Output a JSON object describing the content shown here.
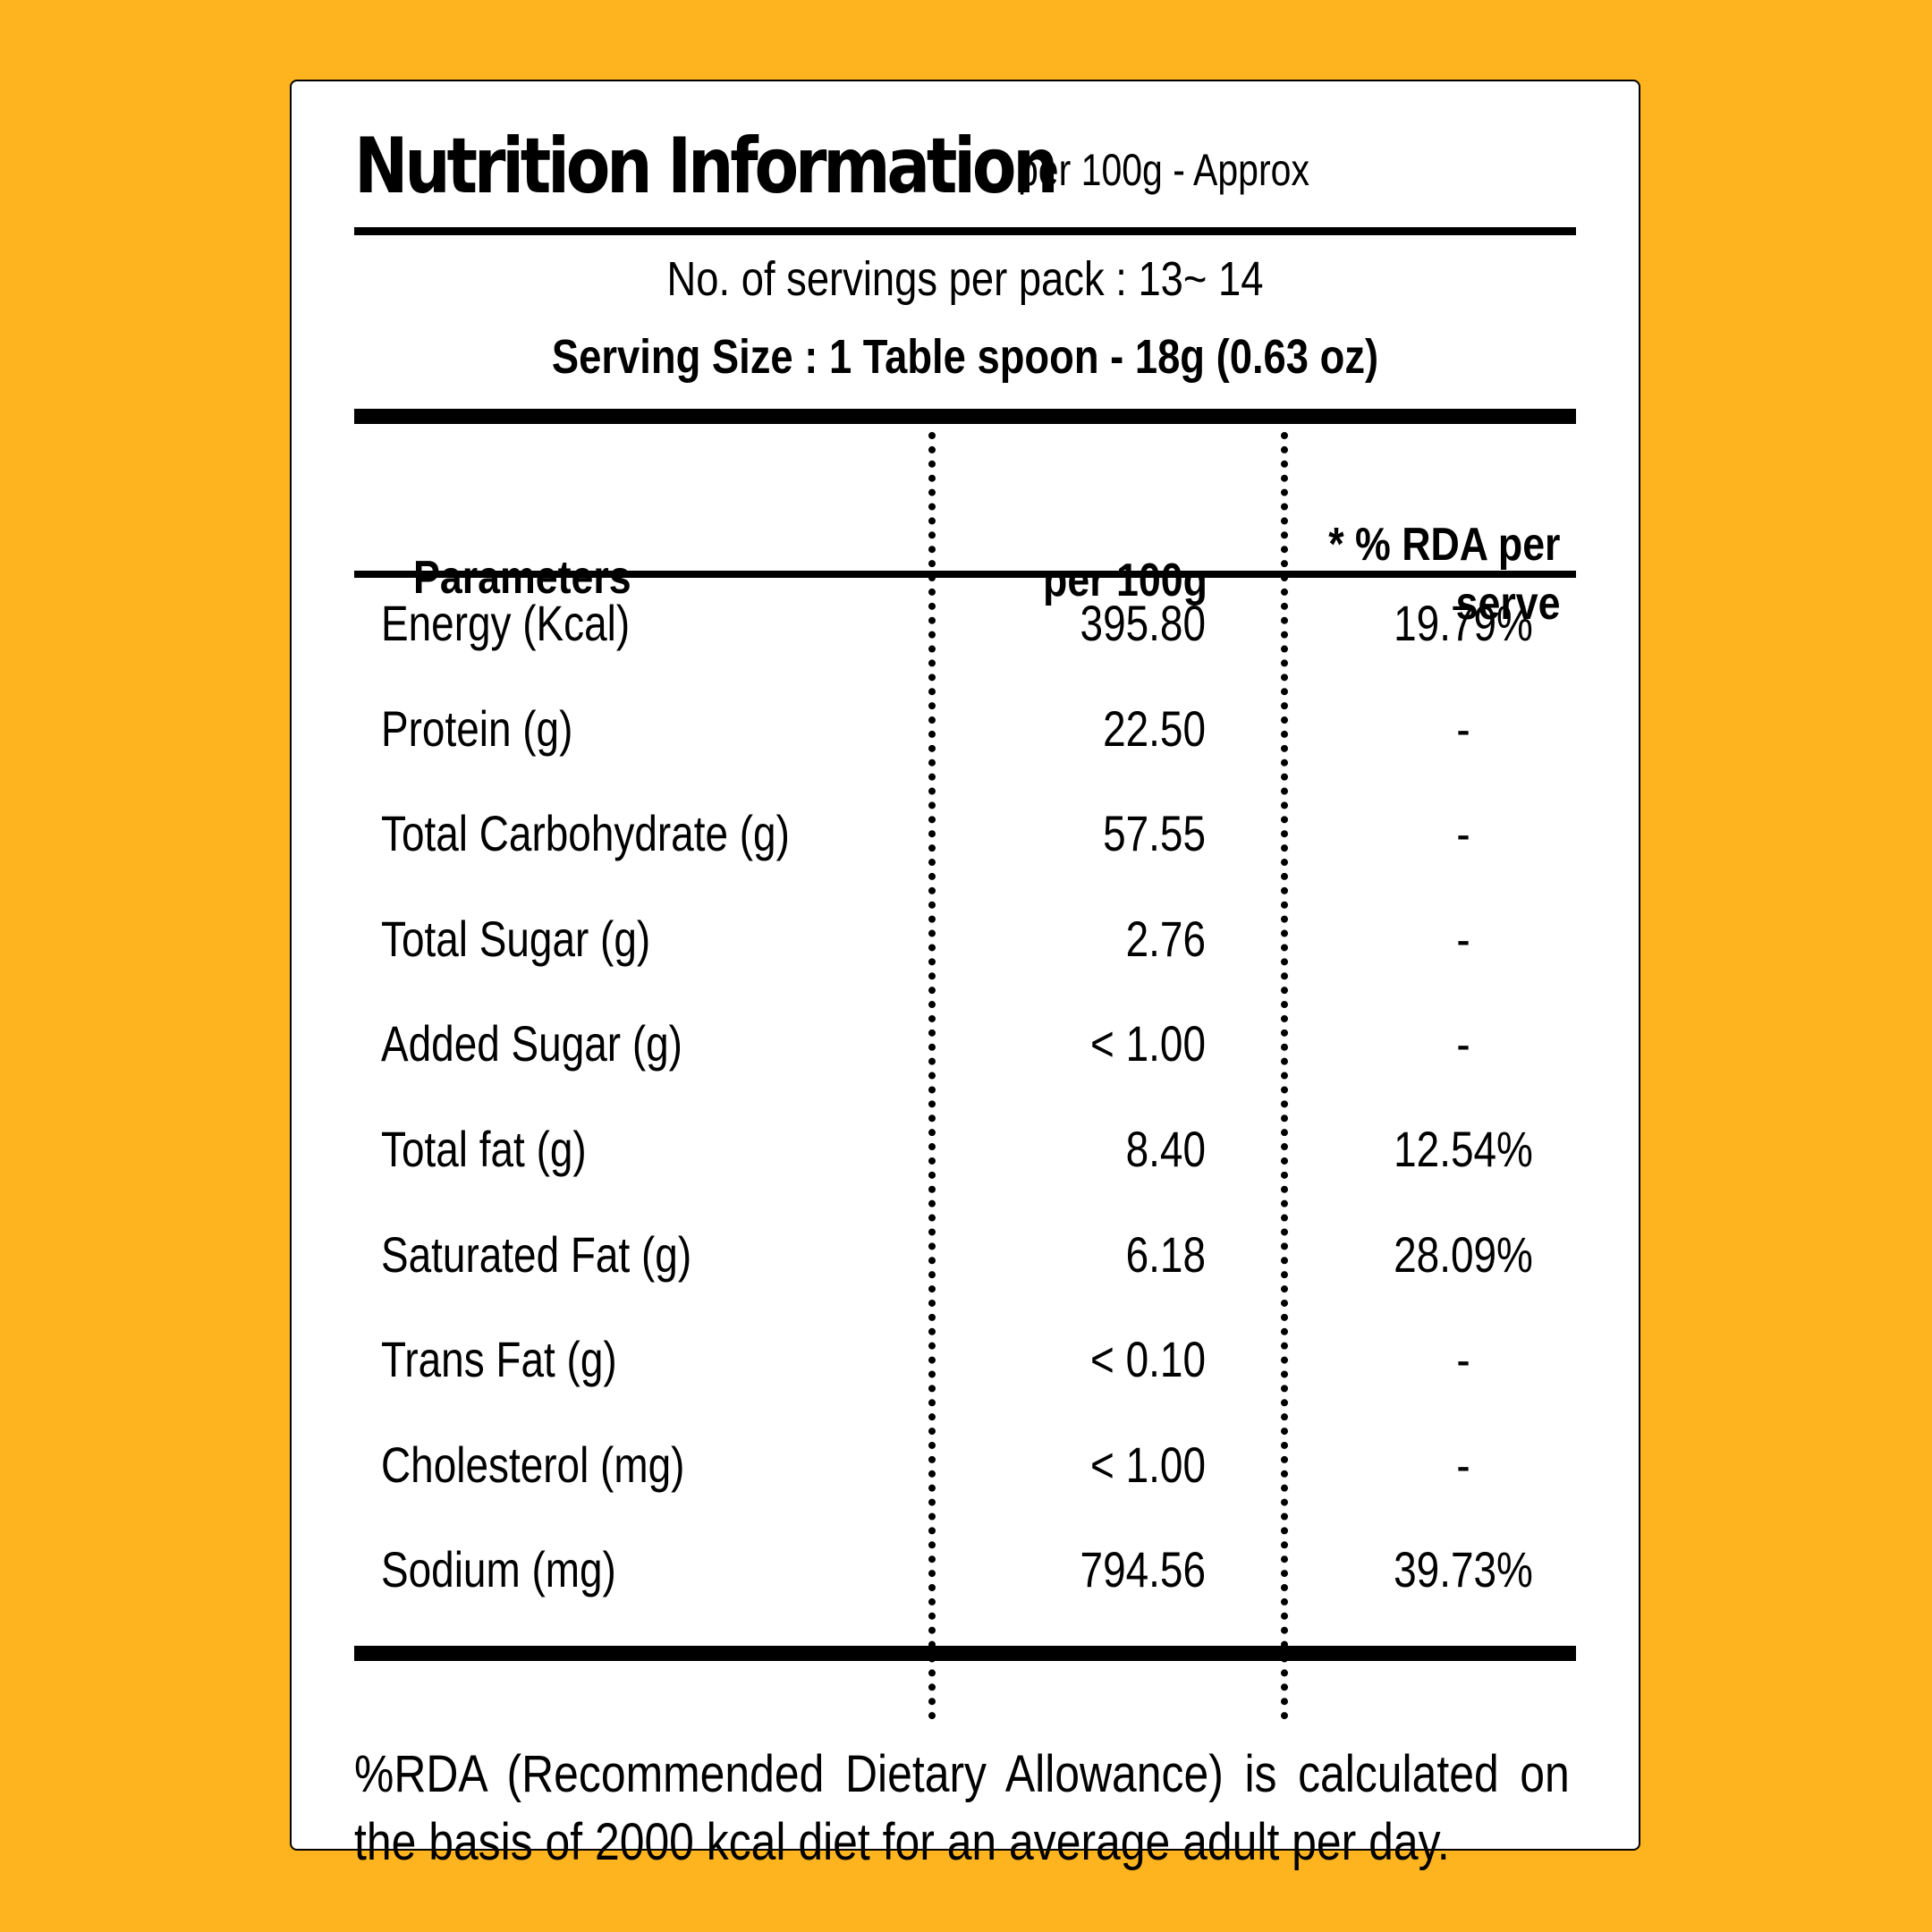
{
  "panel": {
    "title": "Nutrition Information",
    "subtitle": "per 100g - Approx",
    "servings_per_pack": "No. of servings per pack : 13~ 14",
    "serving_size": "Serving Size : 1 Table spoon - 18g (0.63 oz)"
  },
  "table": {
    "headers": {
      "parameters": "Parameters",
      "per_100g": "per 100g",
      "rda_line1": "* % RDA per",
      "rda_line2": "serve"
    },
    "rows": [
      {
        "name": "Energy (Kcal)",
        "per_100g": "395.80",
        "rda": "19.79%"
      },
      {
        "name": "Protein (g)",
        "per_100g": "22.50",
        "rda": "-"
      },
      {
        "name": "Total Carbohydrate (g)",
        "per_100g": "57.55",
        "rda": "-"
      },
      {
        "name": "Total Sugar (g)",
        "per_100g": "2.76",
        "rda": "-"
      },
      {
        "name": "Added Sugar (g)",
        "per_100g": "< 1.00",
        "rda": "-"
      },
      {
        "name": "Total fat (g)",
        "per_100g": "8.40",
        "rda": "12.54%"
      },
      {
        "name": "Saturated Fat (g)",
        "per_100g": "6.18",
        "rda": "28.09%"
      },
      {
        "name": "Trans Fat (g)",
        "per_100g": "< 0.10",
        "rda": "-"
      },
      {
        "name": "Cholesterol (mg)",
        "per_100g": "< 1.00",
        "rda": "-"
      },
      {
        "name": "Sodium (mg)",
        "per_100g": "794.56",
        "rda": "39.73%"
      }
    ]
  },
  "footnote": "%RDA (Recommended Dietary Allowance) is calculated on the basis of 2000 kcal diet for an average adult per day.",
  "colors": {
    "background": "#FDB41F",
    "card": "#FFFFFF",
    "ink": "#000000"
  }
}
